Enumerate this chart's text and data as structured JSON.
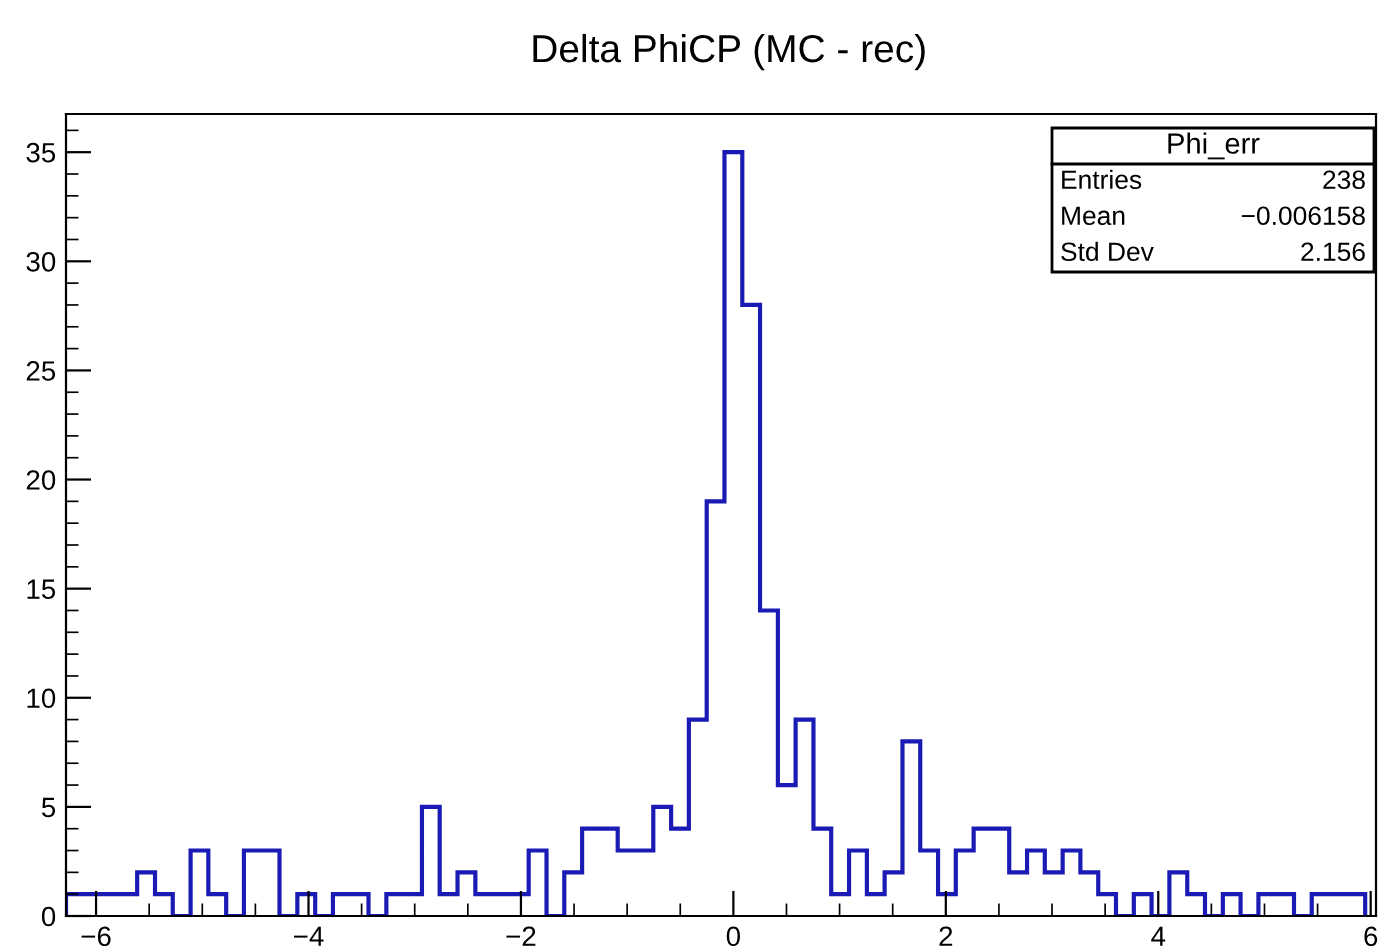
{
  "chart_data": {
    "type": "histogram",
    "title": "Delta PhiCP (MC - rec)",
    "bins": [
      -6.283,
      -6.116,
      -5.948,
      -5.781,
      -5.613,
      -5.445,
      -5.278,
      -5.11,
      -4.943,
      -4.775,
      -4.608,
      -4.44,
      -4.273,
      -4.105,
      -3.937,
      -3.77,
      -3.602,
      -3.435,
      -3.267,
      -3.1,
      -2.932,
      -2.765,
      -2.597,
      -2.429,
      -2.262,
      -2.094,
      -1.927,
      -1.759,
      -1.592,
      -1.424,
      -1.257,
      -1.089,
      -0.921,
      -0.754,
      -0.586,
      -0.419,
      -0.251,
      -0.084,
      0.084,
      0.251,
      0.419,
      0.586,
      0.754,
      0.921,
      1.089,
      1.257,
      1.424,
      1.592,
      1.759,
      1.927,
      2.094,
      2.262,
      2.429,
      2.597,
      2.765,
      2.932,
      3.1,
      3.267,
      3.435,
      3.602,
      3.77,
      3.937,
      4.105,
      4.273,
      4.44,
      4.608,
      4.775,
      4.943,
      5.11,
      5.278,
      5.445,
      5.613,
      5.781,
      5.948
    ],
    "values": [
      1,
      1,
      1,
      1,
      2,
      1,
      0,
      3,
      1,
      0,
      3,
      3,
      0,
      1,
      0,
      1,
      1,
      0,
      1,
      1,
      5,
      1,
      2,
      1,
      1,
      1,
      3,
      0,
      2,
      4,
      4,
      3,
      3,
      5,
      4,
      9,
      19,
      35,
      28,
      14,
      6,
      9,
      4,
      1,
      3,
      1,
      2,
      8,
      3,
      1,
      3,
      4,
      4,
      2,
      3,
      2,
      3,
      2,
      1,
      0,
      1,
      0,
      2,
      1,
      0,
      1,
      0,
      1,
      1,
      0,
      1,
      1,
      1
    ],
    "color": "#1a1ab4",
    "xlim": [
      -6.283,
      6.05
    ],
    "xticks": [
      -6,
      -4,
      -2,
      0,
      2,
      4,
      6
    ],
    "ylim": [
      0,
      36.75
    ],
    "yticks": [
      0,
      5,
      10,
      15,
      20,
      25,
      30,
      35
    ],
    "grid": false,
    "legend": false,
    "annotations": [
      "Phi_err",
      "Entries",
      "238",
      "Mean",
      "−0.006158",
      "Std Dev",
      "2.156"
    ]
  }
}
